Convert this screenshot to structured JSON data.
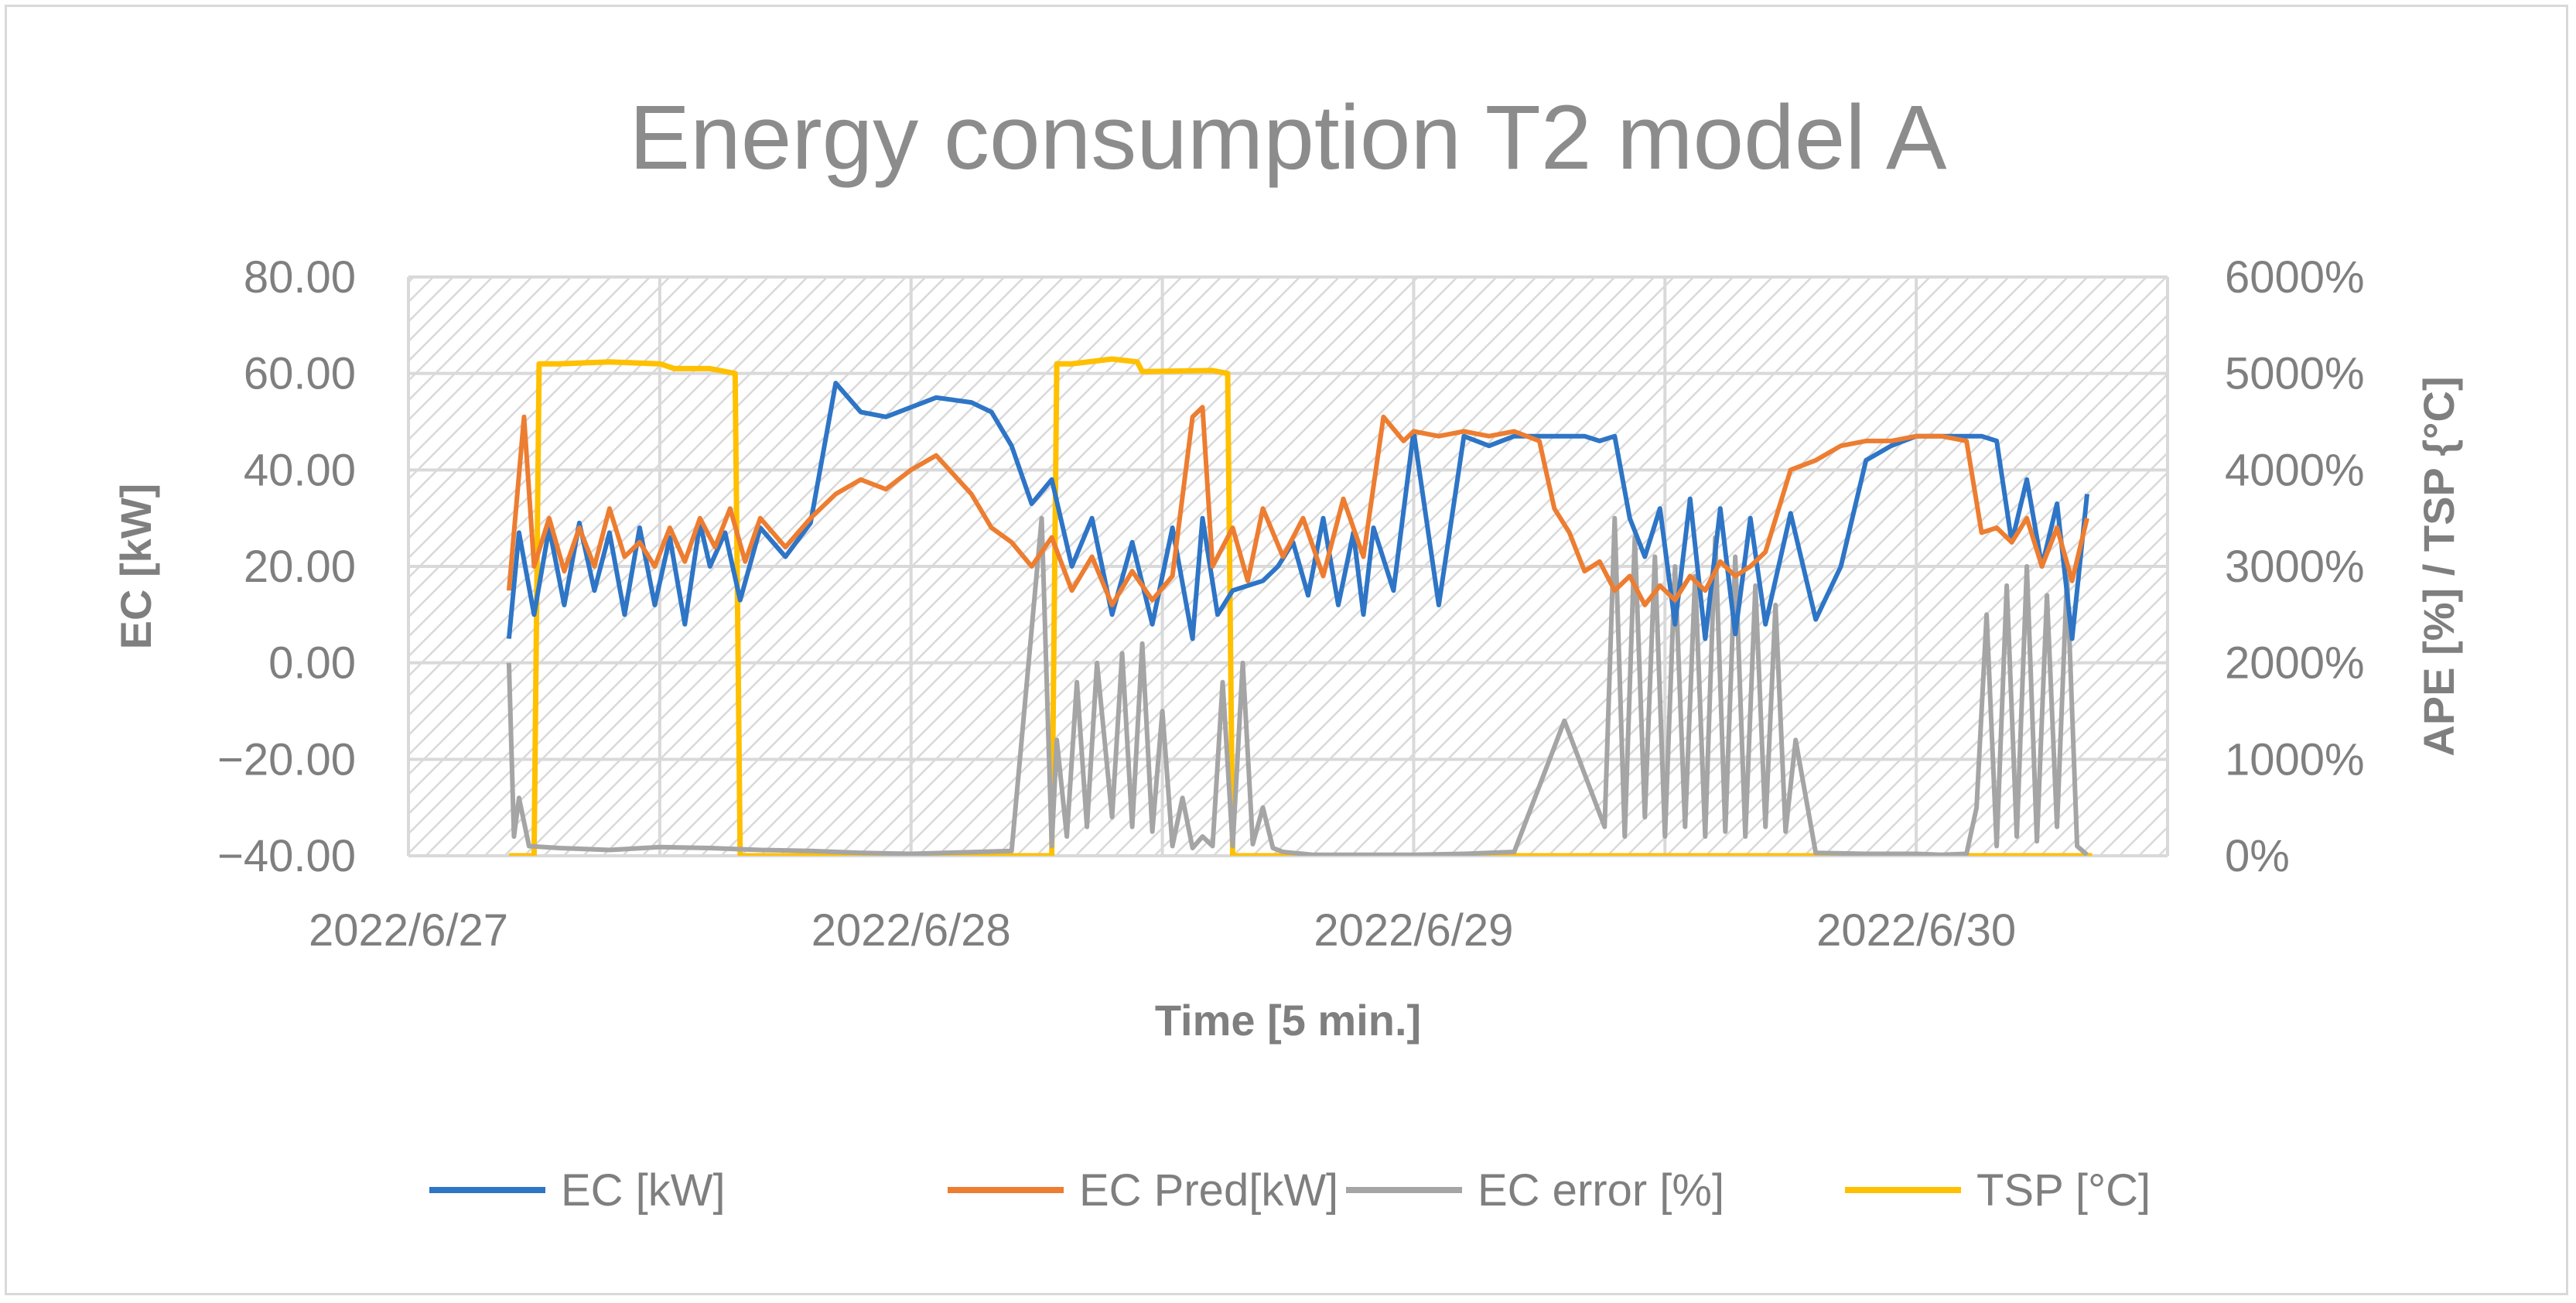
{
  "chart_data": {
    "type": "line",
    "title": "Energy consumption T2 model A",
    "xlabel": "Time [5 min.]",
    "ylabel": "EC [kW]",
    "y2label": "APE [%] / TSP {°C]",
    "ylim": [
      -40,
      80
    ],
    "y2lim": [
      0,
      6000
    ],
    "xlim_days": [
      0,
      3.5
    ],
    "x_ticks": [
      "2022/6/27",
      "2022/6/28",
      "2022/6/29",
      "2022/6/30"
    ],
    "y_ticks": [
      "80.00",
      "60.00",
      "40.00",
      "20.00",
      "0.00",
      "−20.00",
      "−40.00"
    ],
    "y2_ticks": [
      "6000%",
      "5000%",
      "4000%",
      "3000%",
      "2000%",
      "1000%",
      "0%"
    ],
    "grid": true,
    "legend_position": "bottom",
    "series": [
      {
        "name": "EC [kW]",
        "color": "#2e75c6",
        "axis": "left",
        "x": [
          0.2,
          0.22,
          0.25,
          0.28,
          0.31,
          0.34,
          0.37,
          0.4,
          0.43,
          0.46,
          0.49,
          0.52,
          0.55,
          0.58,
          0.6,
          0.63,
          0.66,
          0.7,
          0.75,
          0.8,
          0.85,
          0.9,
          0.95,
          1.0,
          1.05,
          1.12,
          1.16,
          1.2,
          1.24,
          1.28,
          1.32,
          1.36,
          1.4,
          1.44,
          1.48,
          1.52,
          1.56,
          1.58,
          1.61,
          1.64,
          1.67,
          1.7,
          1.73,
          1.76,
          1.79,
          1.82,
          1.85,
          1.88,
          1.9,
          1.92,
          1.96,
          2.0,
          2.05,
          2.1,
          2.15,
          2.2,
          2.25,
          2.28,
          2.31,
          2.34,
          2.37,
          2.4,
          2.43,
          2.46,
          2.49,
          2.52,
          2.55,
          2.58,
          2.61,
          2.64,
          2.67,
          2.7,
          2.75,
          2.8,
          2.85,
          2.9,
          2.95,
          3.0,
          3.05,
          3.1,
          3.13,
          3.16,
          3.19,
          3.22,
          3.25,
          3.28,
          3.31,
          3.34
        ],
        "values": [
          5,
          27,
          10,
          28,
          12,
          29,
          15,
          27,
          10,
          28,
          12,
          26,
          8,
          29,
          20,
          27,
          13,
          28,
          22,
          29,
          58,
          52,
          51,
          53,
          55,
          54,
          52,
          45,
          33,
          38,
          20,
          30,
          10,
          25,
          8,
          28,
          5,
          30,
          10,
          15,
          16,
          17,
          20,
          25,
          14,
          30,
          12,
          27,
          10,
          28,
          15,
          48,
          12,
          47,
          45,
          47,
          47,
          47,
          47,
          47,
          46,
          47,
          30,
          22,
          32,
          8,
          34,
          5,
          32,
          6,
          30,
          8,
          31,
          9,
          20,
          42,
          45,
          47,
          47,
          47,
          47,
          46,
          25,
          38,
          20,
          33,
          5,
          35
        ]
      },
      {
        "name": "EC Pred[kW]",
        "color": "#ed7d31",
        "axis": "left",
        "x": [
          0.2,
          0.23,
          0.25,
          0.28,
          0.31,
          0.34,
          0.37,
          0.4,
          0.43,
          0.46,
          0.49,
          0.52,
          0.55,
          0.58,
          0.61,
          0.64,
          0.67,
          0.7,
          0.75,
          0.8,
          0.85,
          0.9,
          0.95,
          1.0,
          1.05,
          1.12,
          1.16,
          1.2,
          1.24,
          1.28,
          1.32,
          1.36,
          1.4,
          1.44,
          1.48,
          1.52,
          1.56,
          1.58,
          1.6,
          1.64,
          1.67,
          1.7,
          1.74,
          1.78,
          1.82,
          1.86,
          1.9,
          1.94,
          1.98,
          2.0,
          2.05,
          2.1,
          2.15,
          2.2,
          2.25,
          2.28,
          2.31,
          2.34,
          2.37,
          2.4,
          2.43,
          2.46,
          2.49,
          2.52,
          2.55,
          2.58,
          2.61,
          2.64,
          2.67,
          2.7,
          2.75,
          2.8,
          2.85,
          2.9,
          2.95,
          3.0,
          3.05,
          3.1,
          3.13,
          3.16,
          3.19,
          3.22,
          3.25,
          3.28,
          3.31,
          3.34
        ],
        "values": [
          15,
          51,
          20,
          30,
          19,
          28,
          20,
          32,
          22,
          25,
          20,
          28,
          21,
          30,
          24,
          32,
          21,
          30,
          24,
          30,
          35,
          38,
          36,
          40,
          43,
          35,
          28,
          25,
          20,
          26,
          15,
          22,
          12,
          19,
          13,
          18,
          51,
          53,
          20,
          28,
          17,
          32,
          22,
          30,
          18,
          34,
          22,
          51,
          46,
          48,
          47,
          48,
          47,
          48,
          46,
          32,
          27,
          19,
          21,
          15,
          18,
          12,
          16,
          13,
          18,
          15,
          21,
          18,
          20,
          23,
          40,
          42,
          45,
          46,
          46,
          47,
          47,
          46,
          27,
          28,
          25,
          30,
          20,
          28,
          17,
          30
        ]
      },
      {
        "name": "EC error [%]",
        "color": "#a5a5a5",
        "axis": "right",
        "x": [
          0.2,
          0.21,
          0.22,
          0.24,
          0.3,
          0.4,
          0.5,
          0.6,
          0.65,
          0.7,
          0.8,
          0.9,
          1.0,
          1.2,
          1.26,
          1.28,
          1.29,
          1.31,
          1.33,
          1.35,
          1.37,
          1.4,
          1.42,
          1.44,
          1.46,
          1.48,
          1.5,
          1.52,
          1.54,
          1.56,
          1.58,
          1.6,
          1.62,
          1.64,
          1.66,
          1.68,
          1.7,
          1.72,
          1.74,
          1.76,
          1.78,
          1.8,
          1.9,
          2.0,
          2.1,
          2.2,
          2.3,
          2.38,
          2.4,
          2.42,
          2.44,
          2.46,
          2.48,
          2.5,
          2.52,
          2.54,
          2.56,
          2.58,
          2.6,
          2.62,
          2.64,
          2.66,
          2.68,
          2.7,
          2.72,
          2.74,
          2.76,
          2.8,
          2.9,
          3.0,
          3.05,
          3.1,
          3.12,
          3.14,
          3.16,
          3.18,
          3.2,
          3.22,
          3.24,
          3.26,
          3.28,
          3.3,
          3.32,
          3.34
        ],
        "values": [
          2000,
          200,
          600,
          100,
          80,
          60,
          90,
          80,
          70,
          60,
          50,
          30,
          20,
          50,
          3500,
          100,
          1200,
          200,
          1800,
          300,
          2000,
          400,
          2100,
          300,
          2200,
          250,
          1500,
          100,
          600,
          80,
          200,
          100,
          1800,
          100,
          2000,
          120,
          500,
          80,
          40,
          30,
          20,
          10,
          10,
          10,
          20,
          40,
          1400,
          300,
          3500,
          200,
          3300,
          400,
          3100,
          200,
          3000,
          300,
          2900,
          200,
          3300,
          250,
          3100,
          200,
          2800,
          300,
          2600,
          250,
          1200,
          30,
          20,
          20,
          10,
          20,
          500,
          2500,
          100,
          2800,
          200,
          3000,
          150,
          2700,
          300,
          2900,
          100,
          10
        ]
      },
      {
        "name": "TSP [°C]",
        "color": "#ffc000",
        "axis": "right",
        "x": [
          0.2,
          0.25,
          0.26,
          0.3,
          0.4,
          0.5,
          0.53,
          0.6,
          0.65,
          0.66,
          0.7,
          0.9,
          1.2,
          1.28,
          1.29,
          1.32,
          1.4,
          1.45,
          1.46,
          1.6,
          1.63,
          1.64,
          1.8,
          2.0,
          2.5,
          3.0,
          3.35
        ],
        "values": [
          0,
          0,
          5100,
          5100,
          5120,
          5100,
          5050,
          5050,
          5000,
          0,
          0,
          0,
          0,
          0,
          5100,
          5100,
          5150,
          5120,
          5020,
          5030,
          5000,
          0,
          0,
          0,
          0,
          0,
          0
        ]
      }
    ]
  }
}
